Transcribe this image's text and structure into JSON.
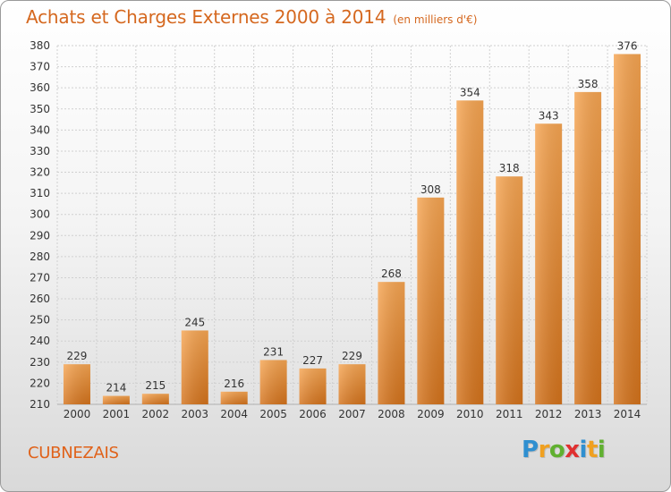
{
  "title": "Achats et Charges Externes 2000 à 2014",
  "subtitle": "(en milliers d'€)",
  "commune": "CUBNEZAIS",
  "logo": {
    "text": "Proxiti",
    "letters": [
      {
        "ch": "P",
        "color": "#2f8fd0"
      },
      {
        "ch": "r",
        "color": "#f0a020"
      },
      {
        "ch": "o",
        "color": "#60b030"
      },
      {
        "ch": "x",
        "color": "#e03030"
      },
      {
        "ch": "i",
        "color": "#2f8fd0"
      },
      {
        "ch": "t",
        "color": "#f0a020"
      },
      {
        "ch": "i",
        "color": "#60b030"
      }
    ]
  },
  "colors": {
    "bar_light": "#f6a552",
    "bar_dark": "#d4731c",
    "title": "#d5681f",
    "grid": "#d0d0d0",
    "axis_text": "#333333"
  },
  "chart_data": {
    "type": "bar",
    "categories": [
      "2000",
      "2001",
      "2002",
      "2003",
      "2004",
      "2005",
      "2006",
      "2007",
      "2008",
      "2009",
      "2010",
      "2011",
      "2012",
      "2013",
      "2014"
    ],
    "values": [
      229,
      214,
      215,
      245,
      216,
      231,
      227,
      229,
      268,
      308,
      354,
      318,
      343,
      358,
      376
    ],
    "data_labels": [
      "229",
      "214",
      "215",
      "245",
      "216",
      "231",
      "227",
      "229",
      "268",
      "308",
      "354",
      "318",
      "343",
      "358",
      "376"
    ],
    "ylim": [
      210,
      380
    ],
    "ytick_step": 10,
    "grid": true,
    "legend": "none",
    "xlabel": "",
    "ylabel": ""
  }
}
